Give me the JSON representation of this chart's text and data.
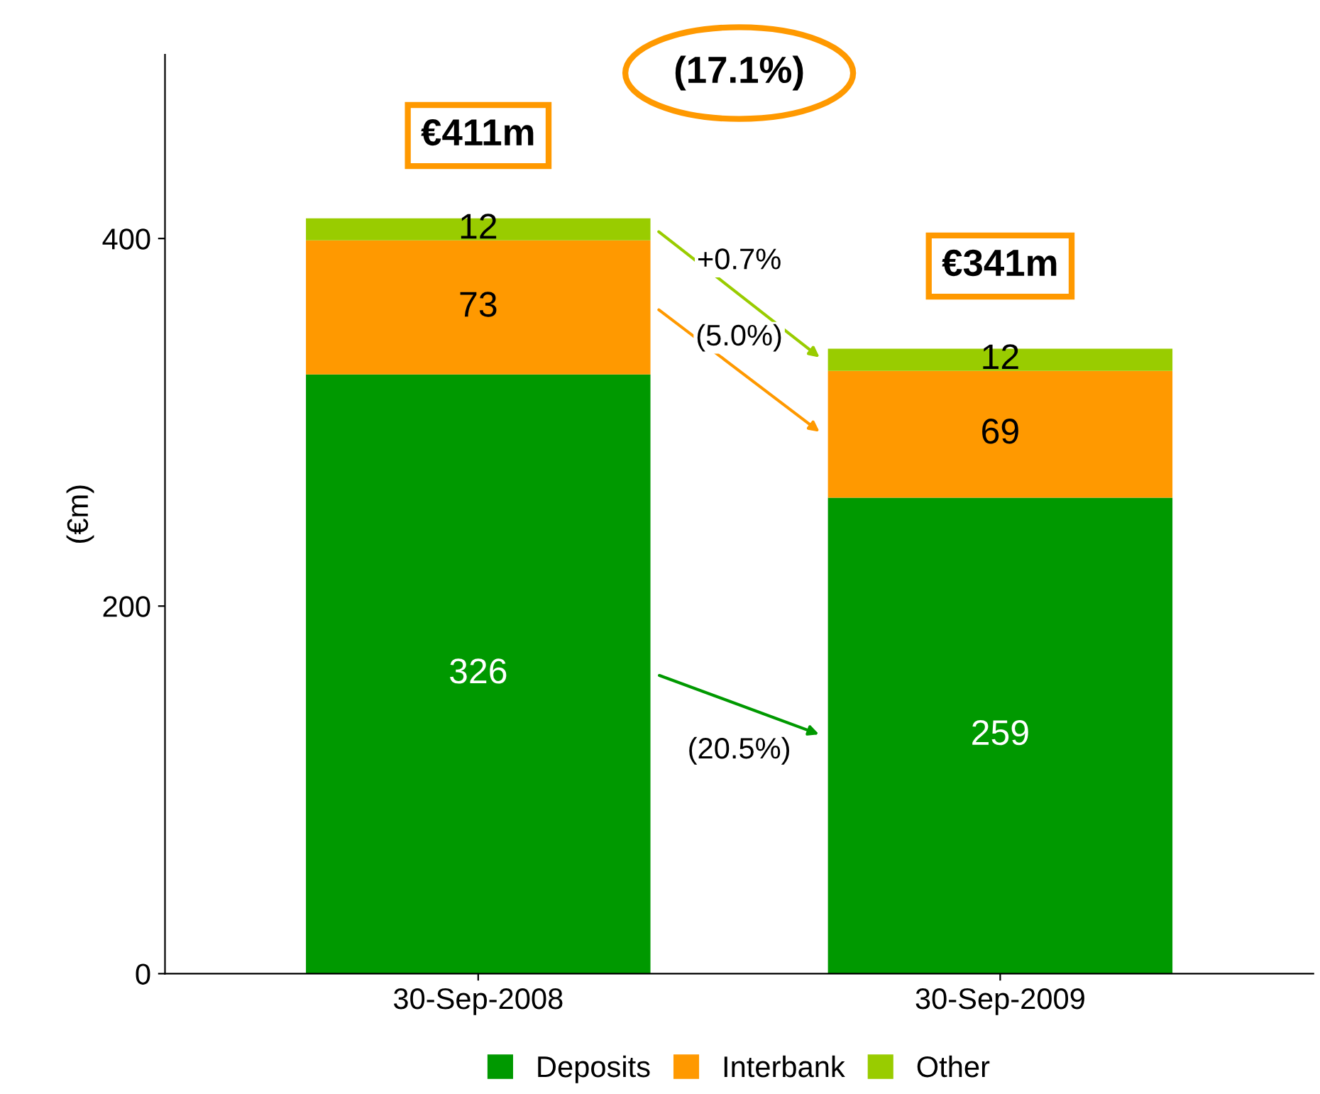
{
  "chart_data": {
    "type": "bar",
    "stacked": true,
    "ylabel": "(€m)",
    "categories": [
      "30-Sep-2008",
      "30-Sep-2009"
    ],
    "series": [
      {
        "name": "Deposits",
        "color": "#009900",
        "values": [
          326,
          259
        ]
      },
      {
        "name": "Interbank",
        "color": "#ff9900",
        "values": [
          73,
          69
        ]
      },
      {
        "name": "Other",
        "color": "#99cc00",
        "values": [
          12,
          12
        ]
      }
    ],
    "ylim": [
      0,
      500
    ],
    "yticks": [
      0,
      200,
      400
    ],
    "data_labels": true,
    "totals": [
      "€411m",
      "€341m"
    ],
    "annotations": [
      "(17.1%)",
      "+0.7%",
      "(5.0%)",
      "(20.5%)"
    ],
    "legend": "bottom",
    "grid": false
  }
}
